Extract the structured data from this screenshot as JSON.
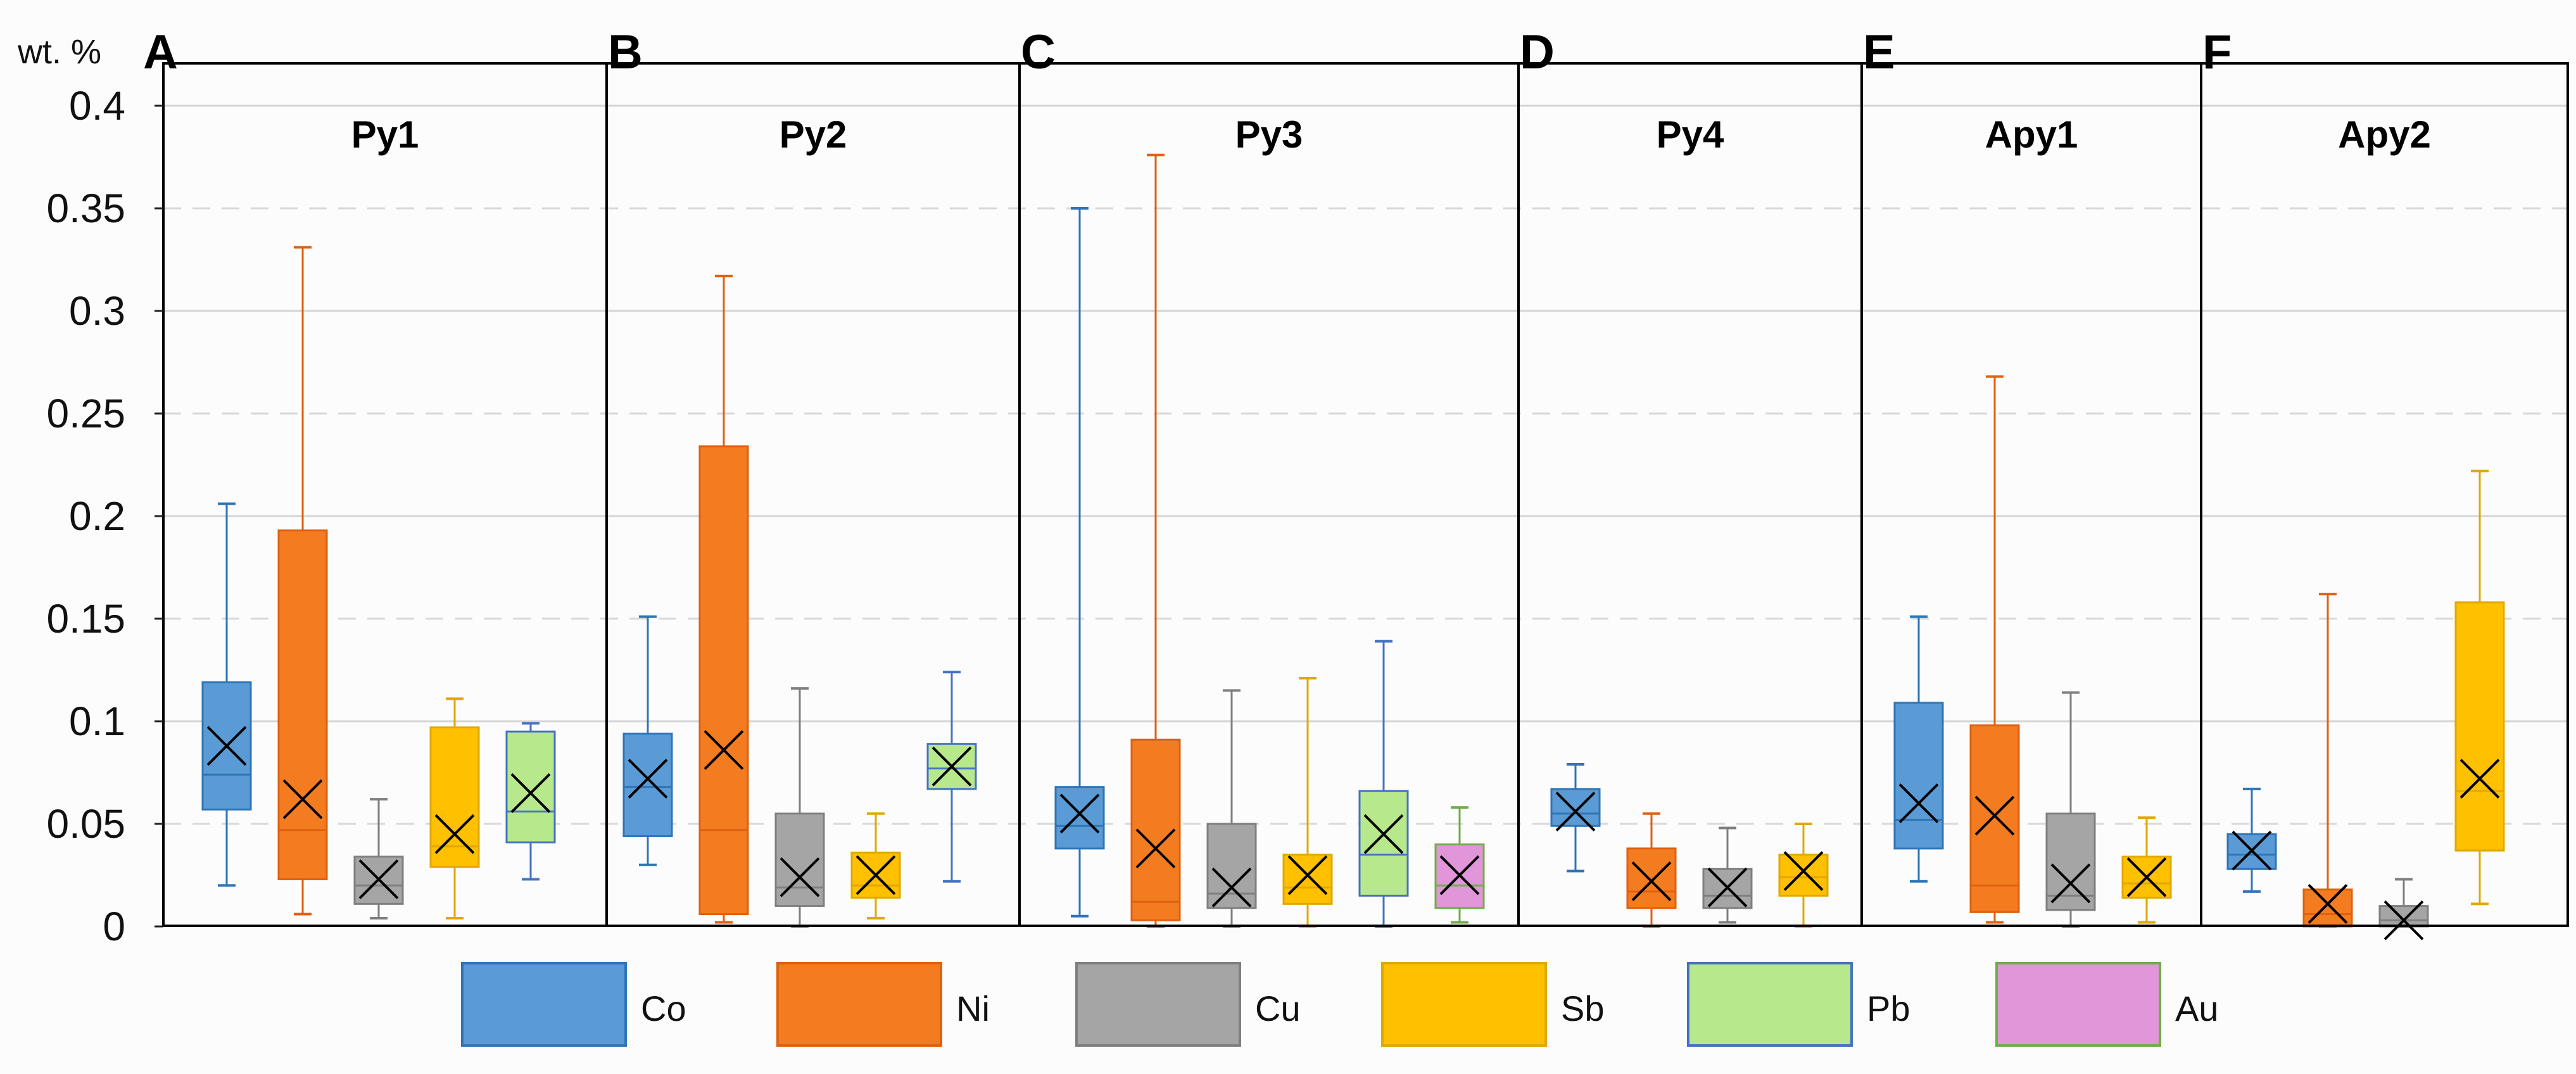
{
  "chart_data": {
    "type": "box",
    "unit_label": "wt. %",
    "ylim": [
      0,
      0.4
    ],
    "yticks": [
      0,
      0.05,
      0.1,
      0.15,
      0.2,
      0.25,
      0.3,
      0.35,
      0.4
    ],
    "ytick_labels": [
      "0",
      "0.05",
      "0.1",
      "0.15",
      "0.2",
      "0.25",
      "0.3",
      "0.35",
      "0.4"
    ],
    "grid": true,
    "elements": [
      {
        "name": "Co",
        "color": "#5b9bd5",
        "edge": "#2e75b6"
      },
      {
        "name": "Ni",
        "color": "#f47c20",
        "edge": "#e06010"
      },
      {
        "name": "Cu",
        "color": "#a5a5a5",
        "edge": "#7f7f7f"
      },
      {
        "name": "Sb",
        "color": "#ffc000",
        "edge": "#e0a800"
      },
      {
        "name": "Pb",
        "color": "#b8e88c",
        "edge": "#4472c4"
      },
      {
        "name": "Au",
        "color": "#e096d8",
        "edge": "#70ad47"
      }
    ],
    "panels": [
      {
        "letter": "A",
        "title": "Py1",
        "boxes": [
          {
            "element": "Co",
            "min": 0.02,
            "q1": 0.057,
            "median": 0.074,
            "q3": 0.119,
            "max": 0.206,
            "mean": 0.088
          },
          {
            "element": "Ni",
            "min": 0.006,
            "q1": 0.023,
            "median": 0.047,
            "q3": 0.193,
            "max": 0.331,
            "mean": 0.062
          },
          {
            "element": "Cu",
            "min": 0.004,
            "q1": 0.011,
            "median": 0.02,
            "q3": 0.034,
            "max": 0.062,
            "mean": 0.023
          },
          {
            "element": "Sb",
            "min": 0.004,
            "q1": 0.029,
            "median": 0.039,
            "q3": 0.097,
            "max": 0.111,
            "mean": 0.045
          },
          {
            "element": "Pb",
            "min": 0.023,
            "q1": 0.041,
            "median": 0.056,
            "q3": 0.095,
            "max": 0.099,
            "mean": 0.065
          }
        ]
      },
      {
        "letter": "B",
        "title": "Py2",
        "boxes": [
          {
            "element": "Co",
            "min": 0.03,
            "q1": 0.044,
            "median": 0.068,
            "q3": 0.094,
            "max": 0.151,
            "mean": 0.072
          },
          {
            "element": "Ni",
            "min": 0.002,
            "q1": 0.006,
            "median": 0.047,
            "q3": 0.234,
            "max": 0.317,
            "mean": 0.086
          },
          {
            "element": "Cu",
            "min": 0.0,
            "q1": 0.01,
            "median": 0.019,
            "q3": 0.055,
            "max": 0.116,
            "mean": 0.024
          },
          {
            "element": "Sb",
            "min": 0.004,
            "q1": 0.014,
            "median": 0.02,
            "q3": 0.036,
            "max": 0.055,
            "mean": 0.025
          },
          {
            "element": "Pb",
            "min": 0.022,
            "q1": 0.067,
            "median": 0.077,
            "q3": 0.089,
            "max": 0.124,
            "mean": 0.078
          }
        ]
      },
      {
        "letter": "C",
        "title": "Py3",
        "boxes": [
          {
            "element": "Co",
            "min": 0.005,
            "q1": 0.038,
            "median": 0.049,
            "q3": 0.068,
            "max": 0.35,
            "mean": 0.055
          },
          {
            "element": "Ni",
            "min": 0.0,
            "q1": 0.003,
            "median": 0.012,
            "q3": 0.091,
            "max": 0.376,
            "mean": 0.038
          },
          {
            "element": "Cu",
            "min": 0.0,
            "q1": 0.009,
            "median": 0.016,
            "q3": 0.05,
            "max": 0.115,
            "mean": 0.019
          },
          {
            "element": "Sb",
            "min": 0.0,
            "q1": 0.011,
            "median": 0.019,
            "q3": 0.035,
            "max": 0.121,
            "mean": 0.025
          },
          {
            "element": "Pb",
            "min": 0.0,
            "q1": 0.015,
            "median": 0.035,
            "q3": 0.066,
            "max": 0.139,
            "mean": 0.045
          },
          {
            "element": "Au",
            "min": 0.002,
            "q1": 0.009,
            "median": 0.02,
            "q3": 0.04,
            "max": 0.058,
            "mean": 0.025
          }
        ]
      },
      {
        "letter": "D",
        "title": "Py4",
        "boxes": [
          {
            "element": "Co",
            "min": 0.027,
            "q1": 0.049,
            "median": 0.055,
            "q3": 0.067,
            "max": 0.079,
            "mean": 0.056
          },
          {
            "element": "Ni",
            "min": 0.0,
            "q1": 0.009,
            "median": 0.017,
            "q3": 0.038,
            "max": 0.055,
            "mean": 0.022
          },
          {
            "element": "Cu",
            "min": 0.002,
            "q1": 0.009,
            "median": 0.015,
            "q3": 0.028,
            "max": 0.048,
            "mean": 0.019
          },
          {
            "element": "Sb",
            "min": 0.0,
            "q1": 0.015,
            "median": 0.024,
            "q3": 0.035,
            "max": 0.05,
            "mean": 0.027
          }
        ]
      },
      {
        "letter": "E",
        "title": "Apy1",
        "boxes": [
          {
            "element": "Co",
            "min": 0.022,
            "q1": 0.038,
            "median": 0.052,
            "q3": 0.109,
            "max": 0.151,
            "mean": 0.06
          },
          {
            "element": "Ni",
            "min": 0.002,
            "q1": 0.007,
            "median": 0.02,
            "q3": 0.098,
            "max": 0.268,
            "mean": 0.054
          },
          {
            "element": "Cu",
            "min": 0.0,
            "q1": 0.008,
            "median": 0.015,
            "q3": 0.055,
            "max": 0.114,
            "mean": 0.021
          },
          {
            "element": "Sb",
            "min": 0.002,
            "q1": 0.014,
            "median": 0.021,
            "q3": 0.034,
            "max": 0.053,
            "mean": 0.024
          }
        ]
      },
      {
        "letter": "F",
        "title": "Apy2",
        "boxes": [
          {
            "element": "Co",
            "min": 0.017,
            "q1": 0.028,
            "median": 0.035,
            "q3": 0.045,
            "max": 0.067,
            "mean": 0.037
          },
          {
            "element": "Ni",
            "min": 0.0,
            "q1": 0.0,
            "median": 0.006,
            "q3": 0.018,
            "max": 0.162,
            "mean": 0.011
          },
          {
            "element": "Cu",
            "min": 0.0,
            "q1": 0.0,
            "median": 0.003,
            "q3": 0.01,
            "max": 0.023,
            "mean": 0.003
          },
          {
            "element": "Sb",
            "min": 0.011,
            "q1": 0.037,
            "median": 0.066,
            "q3": 0.158,
            "max": 0.222,
            "mean": 0.072
          }
        ]
      }
    ]
  }
}
